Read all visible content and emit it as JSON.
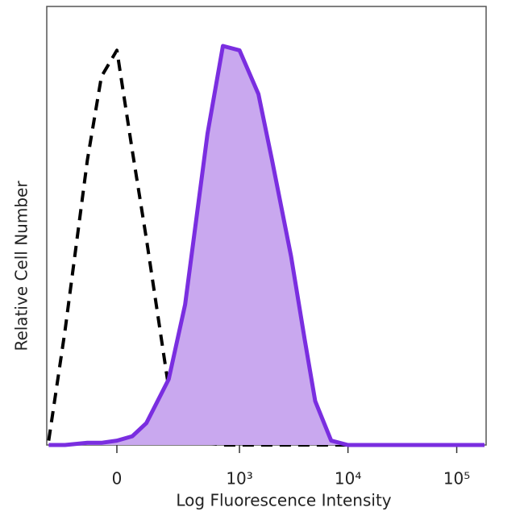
{
  "chart_data": {
    "type": "histogram_overlay",
    "x_label": "Log Fluorescence Intensity",
    "y_label": "Relative Cell Number",
    "xscale": "biexponential",
    "xlim": [
      -314,
      186300
    ],
    "xticks": [
      {
        "value": 0,
        "label": "0"
      },
      {
        "value": 1000,
        "label": "10³"
      },
      {
        "value": 10000,
        "label": "10⁴"
      },
      {
        "value": 100000,
        "label": "10⁵"
      }
    ],
    "ylim": [
      0,
      100
    ],
    "x": [
      -300,
      -200,
      -100,
      -50,
      0,
      50,
      100,
      200,
      300,
      500,
      700,
      1000,
      1500,
      2000,
      3000,
      4000,
      5000,
      7000,
      10000,
      20000,
      50000,
      100000,
      180000
    ],
    "series": [
      {
        "color": "#000000",
        "style": "dashed",
        "filled": false,
        "values": [
          1,
          26,
          65,
          84,
          90,
          67,
          47,
          13,
          1,
          0.5,
          0,
          0,
          0,
          0,
          0,
          0,
          0,
          0,
          0,
          0,
          0,
          0,
          0
        ]
      },
      {
        "color": "#7a2ee0",
        "fill": "#c9a8ef",
        "style": "solid",
        "filled": true,
        "values": [
          0,
          0,
          0.5,
          0.5,
          1,
          2,
          5,
          15,
          32,
          71,
          91,
          90,
          80,
          65,
          43,
          24,
          10,
          1,
          0,
          0,
          0,
          0,
          0
        ]
      }
    ]
  }
}
